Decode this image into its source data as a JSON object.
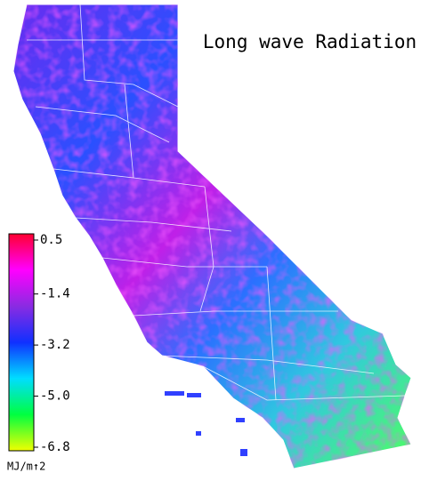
{
  "title": "Long wave Radiation",
  "colorbar": {
    "ticks": [
      0.5,
      -1.4,
      -3.2,
      {
        "value": -5,
        "label": "-5.0"
      },
      -6.8
    ],
    "colors": [
      "#ff0030",
      "#ff00ff",
      "#8a2be2",
      "#1030ff",
      "#00ddff",
      "#00ff40",
      "#f0ff00"
    ],
    "unit": "MJ/m↑2"
  }
}
